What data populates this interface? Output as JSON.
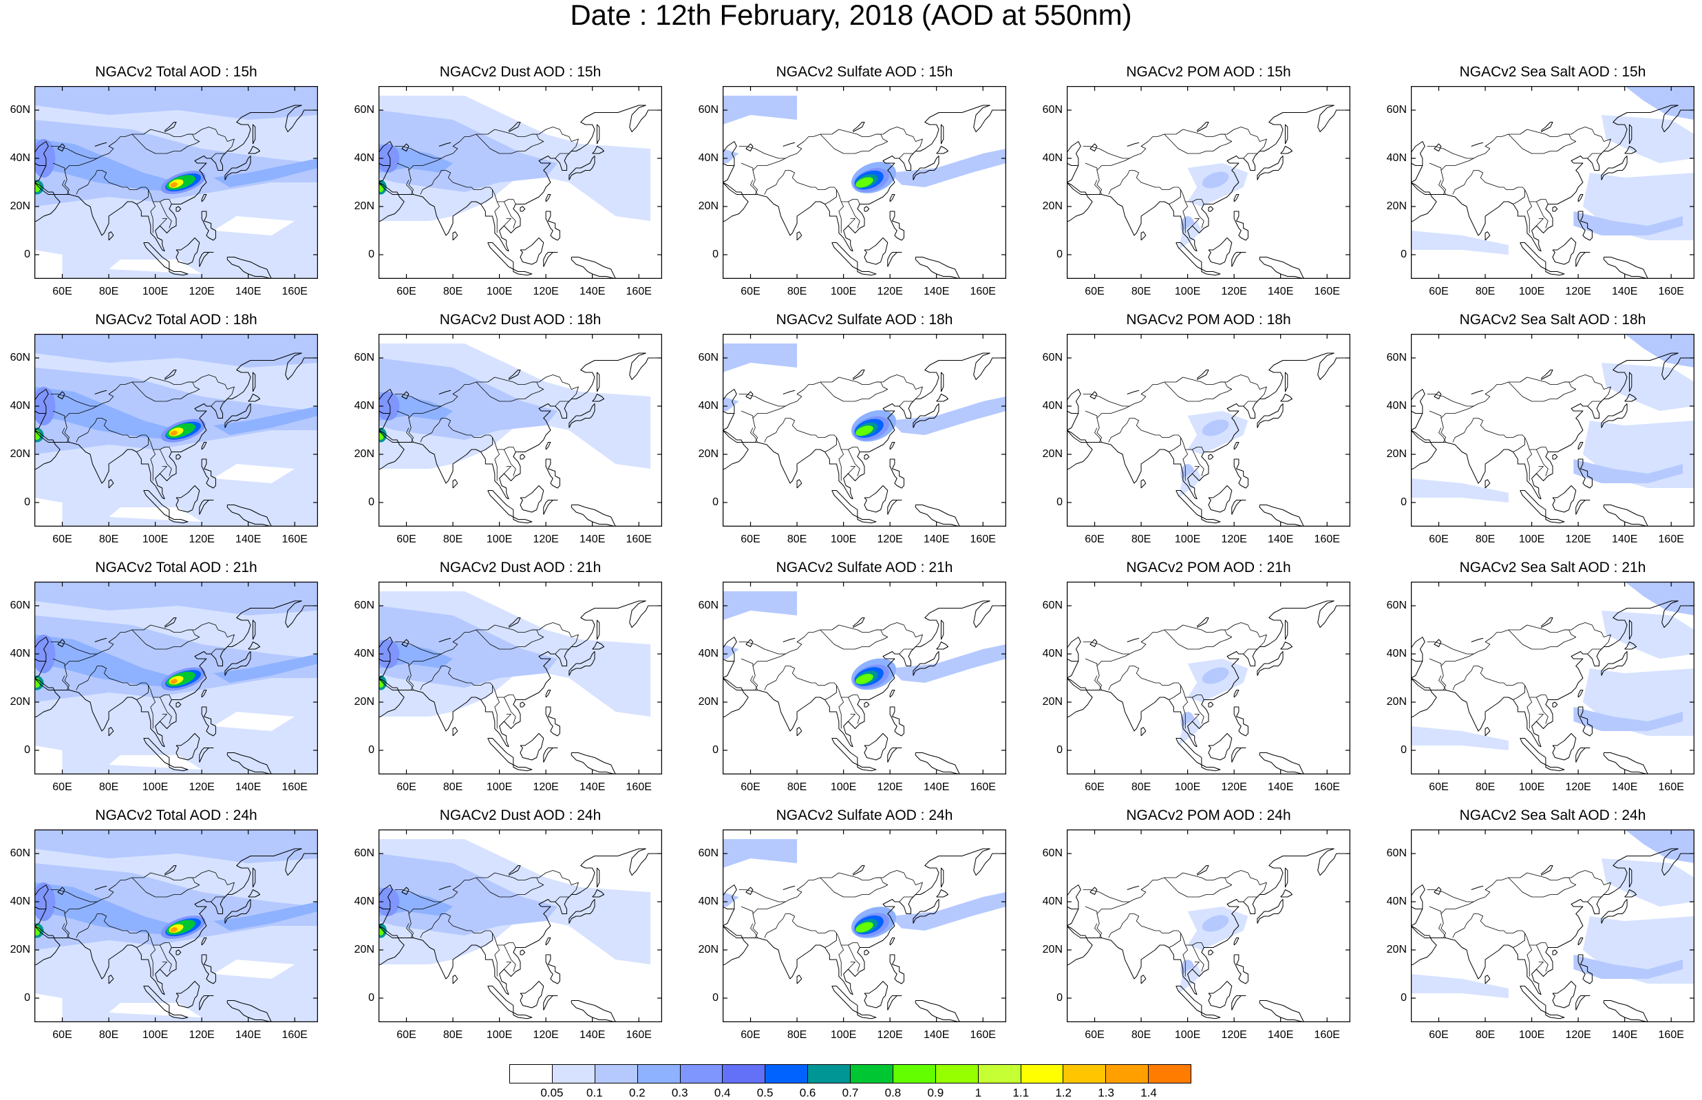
{
  "title": "Date : 12th February, 2018 (AOD at 550nm)",
  "panels": [
    {
      "title": "NGACv2 Total AOD : 15h",
      "type": "total"
    },
    {
      "title": "NGACv2 Dust AOD : 15h",
      "type": "dust"
    },
    {
      "title": "NGACv2 Sulfate AOD : 15h",
      "type": "sulfate"
    },
    {
      "title": "NGACv2 POM AOD : 15h",
      "type": "pom"
    },
    {
      "title": "NGACv2 Sea Salt AOD : 15h",
      "type": "seasalt"
    },
    {
      "title": "NGACv2 Total AOD : 18h",
      "type": "total"
    },
    {
      "title": "NGACv2 Dust AOD : 18h",
      "type": "dust"
    },
    {
      "title": "NGACv2 Sulfate AOD : 18h",
      "type": "sulfate"
    },
    {
      "title": "NGACv2 POM AOD : 18h",
      "type": "pom"
    },
    {
      "title": "NGACv2 Sea Salt AOD : 18h",
      "type": "seasalt"
    },
    {
      "title": "NGACv2 Total AOD : 21h",
      "type": "total"
    },
    {
      "title": "NGACv2 Dust AOD : 21h",
      "type": "dust"
    },
    {
      "title": "NGACv2 Sulfate AOD : 21h",
      "type": "sulfate"
    },
    {
      "title": "NGACv2 POM AOD : 21h",
      "type": "pom"
    },
    {
      "title": "NGACv2 Sea Salt AOD : 21h",
      "type": "seasalt"
    },
    {
      "title": "NGACv2 Total AOD : 24h",
      "type": "total"
    },
    {
      "title": "NGACv2 Dust AOD : 24h",
      "type": "dust"
    },
    {
      "title": "NGACv2 Sulfate AOD : 24h",
      "type": "sulfate"
    },
    {
      "title": "NGACv2 POM AOD : 24h",
      "type": "pom"
    },
    {
      "title": "NGACv2 Sea Salt  AOD : 24h",
      "type": "seasalt"
    }
  ],
  "axes": {
    "lat_labels": [
      "60N",
      "40N",
      "20N",
      "0"
    ],
    "lat_values": [
      60,
      40,
      20,
      0
    ],
    "lon_labels": [
      "60E",
      "80E",
      "100E",
      "120E",
      "140E",
      "160E"
    ],
    "lon_values": [
      60,
      80,
      100,
      120,
      140,
      160
    ],
    "lon_range": [
      48,
      170
    ],
    "lat_range": [
      -10,
      70
    ]
  },
  "colorbar": {
    "labels": [
      "0.05",
      "0.1",
      "0.2",
      "0.3",
      "0.4",
      "0.5",
      "0.6",
      "0.7",
      "0.8",
      "0.9",
      "1",
      "1.1",
      "1.2",
      "1.3",
      "1.4"
    ],
    "colors": [
      "#ffffff",
      "#d6e2ff",
      "#b5c9ff",
      "#8eb2ff",
      "#7f96ff",
      "#6370f8",
      "#0063ff",
      "#009696",
      "#00c633",
      "#63ff00",
      "#96ff00",
      "#c6ff33",
      "#ffff00",
      "#ffc600",
      "#ffa000",
      "#ff7c00",
      "#ff1900"
    ]
  }
}
